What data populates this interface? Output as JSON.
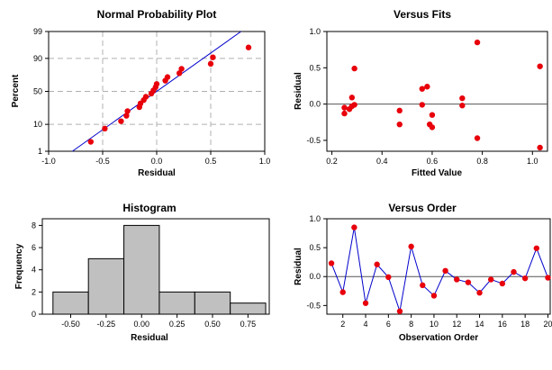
{
  "chart_data": [
    {
      "type": "scatter",
      "title": "Normal Probability Plot",
      "xlabel": "Residual",
      "ylabel": "Percent",
      "xlim": [
        -1.0,
        1.0
      ],
      "y_scale": "normal-probability",
      "ylim": [
        1,
        99
      ],
      "xticks": [
        "-1.0",
        "-0.5",
        "0.0",
        "0.5",
        "1.0"
      ],
      "yticks": [
        "1",
        "10",
        "50",
        "90",
        "99"
      ],
      "ytick_values": [
        1,
        10,
        50,
        90,
        99
      ],
      "grid": true,
      "gridline_color": "#b0b0b0",
      "marker_color": "#e8000b",
      "line_color": "#0000cc",
      "points": [
        {
          "x": -0.61,
          "y": 2.5
        },
        {
          "x": -0.48,
          "y": 7.4
        },
        {
          "x": -0.33,
          "y": 12.3
        },
        {
          "x": -0.28,
          "y": 17.2
        },
        {
          "x": -0.27,
          "y": 22.1
        },
        {
          "x": -0.16,
          "y": 27.0
        },
        {
          "x": -0.15,
          "y": 31.9
        },
        {
          "x": -0.12,
          "y": 36.8
        },
        {
          "x": -0.1,
          "y": 41.7
        },
        {
          "x": -0.05,
          "y": 46.6
        },
        {
          "x": -0.03,
          "y": 51.5
        },
        {
          "x": -0.01,
          "y": 56.4
        },
        {
          "x": 0.0,
          "y": 61.3
        },
        {
          "x": 0.08,
          "y": 66.2
        },
        {
          "x": 0.1,
          "y": 71.1
        },
        {
          "x": 0.21,
          "y": 76.0
        },
        {
          "x": 0.23,
          "y": 80.9
        },
        {
          "x": 0.5,
          "y": 85.8
        },
        {
          "x": 0.52,
          "y": 90.7
        },
        {
          "x": 0.85,
          "y": 95.6
        }
      ],
      "fit_line": [
        [
          -0.78,
          1
        ],
        [
          0.78,
          99
        ]
      ]
    },
    {
      "type": "scatter",
      "title": "Versus Fits",
      "xlabel": "Fitted Value",
      "ylabel": "Residual",
      "xlim": [
        0.18,
        1.06
      ],
      "ylim": [
        -0.65,
        1.0
      ],
      "xticks": [
        0.2,
        0.4,
        0.6,
        0.8,
        1.0
      ],
      "xtick_labels": [
        "0.2",
        "0.4",
        "0.6",
        "0.8",
        "1.0"
      ],
      "yticks": [
        -0.5,
        0.0,
        0.5,
        1.0
      ],
      "ytick_labels": [
        "-0.5",
        "0.0",
        "0.5",
        "1.0"
      ],
      "reference_line": 0,
      "marker_color": "#e8000b",
      "points": [
        {
          "x": 0.25,
          "y": -0.05
        },
        {
          "x": 0.25,
          "y": -0.13
        },
        {
          "x": 0.27,
          "y": -0.07
        },
        {
          "x": 0.28,
          "y": 0.09
        },
        {
          "x": 0.28,
          "y": -0.03
        },
        {
          "x": 0.29,
          "y": 0.49
        },
        {
          "x": 0.29,
          "y": -0.01
        },
        {
          "x": 0.47,
          "y": -0.09
        },
        {
          "x": 0.47,
          "y": -0.28
        },
        {
          "x": 0.56,
          "y": 0.21
        },
        {
          "x": 0.56,
          "y": -0.01
        },
        {
          "x": 0.58,
          "y": 0.24
        },
        {
          "x": 0.59,
          "y": -0.28
        },
        {
          "x": 0.6,
          "y": -0.32
        },
        {
          "x": 0.6,
          "y": -0.15
        },
        {
          "x": 0.72,
          "y": 0.08
        },
        {
          "x": 0.72,
          "y": -0.02
        },
        {
          "x": 0.78,
          "y": 0.85
        },
        {
          "x": 0.78,
          "y": -0.47
        },
        {
          "x": 1.03,
          "y": 0.52
        },
        {
          "x": 1.03,
          "y": -0.6
        }
      ]
    },
    {
      "type": "bar",
      "title": "Histogram",
      "xlabel": "Residual",
      "ylabel": "Frequency",
      "bin_edges": [
        -0.625,
        -0.375,
        -0.125,
        0.125,
        0.375,
        0.625,
        0.875
      ],
      "values": [
        2,
        5,
        8,
        2,
        2,
        1
      ],
      "xlim": [
        -0.7,
        0.9
      ],
      "ylim": [
        0,
        8.6
      ],
      "xticks": [
        -0.5,
        -0.25,
        0.0,
        0.25,
        0.5,
        0.75
      ],
      "xtick_labels": [
        "-0.50",
        "-0.25",
        "0.00",
        "0.25",
        "0.50",
        "0.75"
      ],
      "yticks": [
        0,
        2,
        4,
        6,
        8
      ],
      "ytick_labels": [
        "0",
        "2",
        "4",
        "6",
        "8"
      ],
      "bar_color": "#c0c0c0"
    },
    {
      "type": "line",
      "title": "Versus Order",
      "xlabel": "Observation Order",
      "ylabel": "Residual",
      "xlim": [
        0.6,
        20.2
      ],
      "ylim": [
        -0.65,
        1.0
      ],
      "xticks": [
        2,
        4,
        6,
        8,
        10,
        12,
        14,
        16,
        18,
        20
      ],
      "xtick_labels": [
        "2",
        "4",
        "6",
        "8",
        "10",
        "12",
        "14",
        "16",
        "18",
        "20"
      ],
      "yticks": [
        -0.5,
        0.0,
        0.5,
        1.0
      ],
      "ytick_labels": [
        "-0.5",
        "0.0",
        "0.5",
        "1.0"
      ],
      "reference_line": 0,
      "marker_color": "#e8000b",
      "line_color": "#0000cc",
      "x": [
        1,
        2,
        3,
        4,
        5,
        6,
        7,
        8,
        9,
        10,
        11,
        12,
        13,
        14,
        15,
        16,
        17,
        18,
        19,
        20
      ],
      "values": [
        0.23,
        -0.27,
        0.85,
        -0.46,
        0.21,
        -0.01,
        -0.6,
        0.52,
        -0.15,
        -0.33,
        0.1,
        -0.05,
        -0.1,
        -0.28,
        -0.05,
        -0.12,
        0.08,
        -0.03,
        0.49,
        -0.02
      ]
    }
  ]
}
